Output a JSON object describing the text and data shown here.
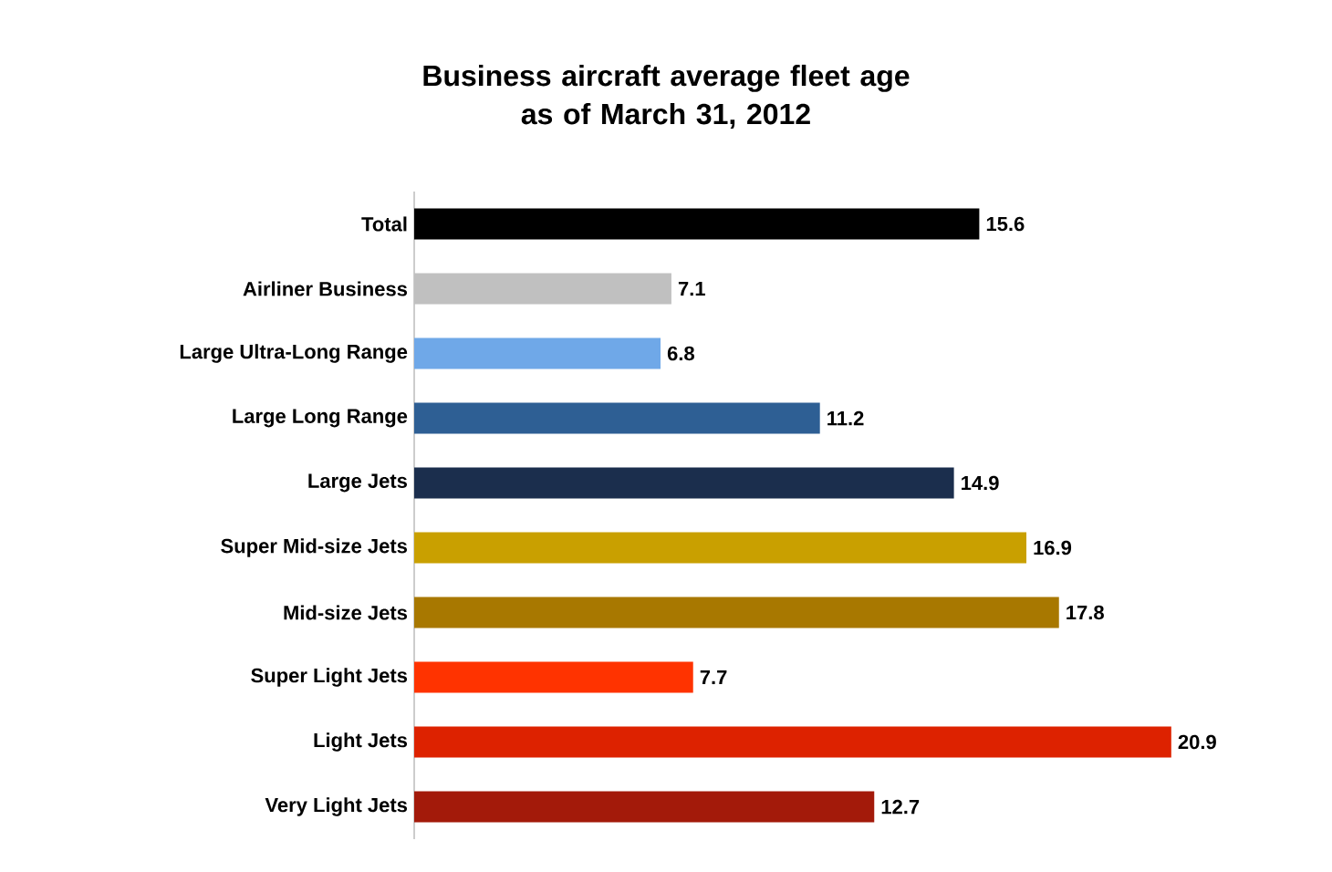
{
  "chart_data": {
    "type": "bar",
    "orientation": "horizontal",
    "title": "Business aircraft average fleet age\nas of March 31, 2012",
    "categories": [
      "Total",
      "Airliner Business",
      "Large Ultra-Long Range",
      "Large Long Range",
      "Large Jets",
      "Super Mid-size Jets",
      "Mid-size Jets",
      "Super Light Jets",
      "Light Jets",
      "Very Light Jets"
    ],
    "values": [
      15.6,
      7.1,
      6.8,
      11.2,
      14.9,
      16.9,
      17.8,
      7.7,
      20.9,
      12.7
    ],
    "colors": [
      "#000000",
      "#c0c0c0",
      "#6fa8e8",
      "#2e5f94",
      "#1b2e4d",
      "#c9a000",
      "#a87800",
      "#ff3300",
      "#dd2200",
      "#a31a0a"
    ],
    "data_labels": true
  }
}
